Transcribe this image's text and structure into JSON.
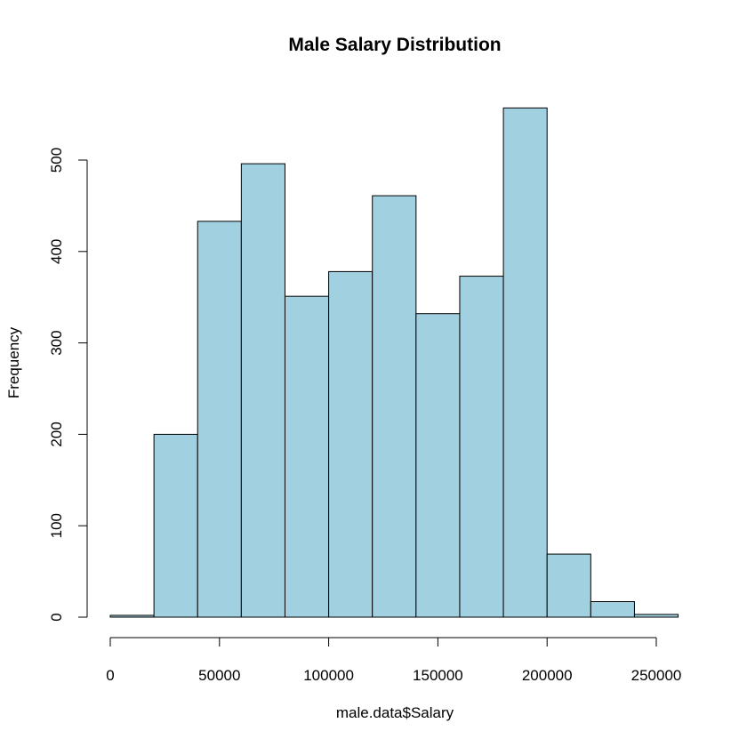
{
  "chart_data": {
    "type": "bar",
    "title": "Male Salary Distribution",
    "xlabel": "male.data$Salary",
    "ylabel": "Frequency",
    "bar_color": "#a1d0e1",
    "bin_width": 20000,
    "bins": [
      {
        "start": 0,
        "end": 20000,
        "count": 2
      },
      {
        "start": 20000,
        "end": 40000,
        "count": 200
      },
      {
        "start": 40000,
        "end": 60000,
        "count": 433
      },
      {
        "start": 60000,
        "end": 80000,
        "count": 496
      },
      {
        "start": 80000,
        "end": 100000,
        "count": 351
      },
      {
        "start": 100000,
        "end": 120000,
        "count": 378
      },
      {
        "start": 120000,
        "end": 140000,
        "count": 461
      },
      {
        "start": 140000,
        "end": 160000,
        "count": 332
      },
      {
        "start": 160000,
        "end": 180000,
        "count": 373
      },
      {
        "start": 180000,
        "end": 200000,
        "count": 557
      },
      {
        "start": 200000,
        "end": 220000,
        "count": 69
      },
      {
        "start": 220000,
        "end": 240000,
        "count": 17
      },
      {
        "start": 240000,
        "end": 260000,
        "count": 3
      }
    ],
    "xlim": [
      0,
      260000
    ],
    "ylim": [
      0,
      557
    ],
    "x_ticks": [
      0,
      50000,
      100000,
      150000,
      200000,
      250000
    ],
    "x_tick_labels": [
      "0",
      "50000",
      "100000",
      "150000",
      "200000",
      "250000"
    ],
    "y_ticks": [
      0,
      100,
      200,
      300,
      400,
      500
    ],
    "y_tick_labels": [
      "0",
      "100",
      "200",
      "300",
      "400",
      "500"
    ],
    "grid": false,
    "legend": "none"
  }
}
